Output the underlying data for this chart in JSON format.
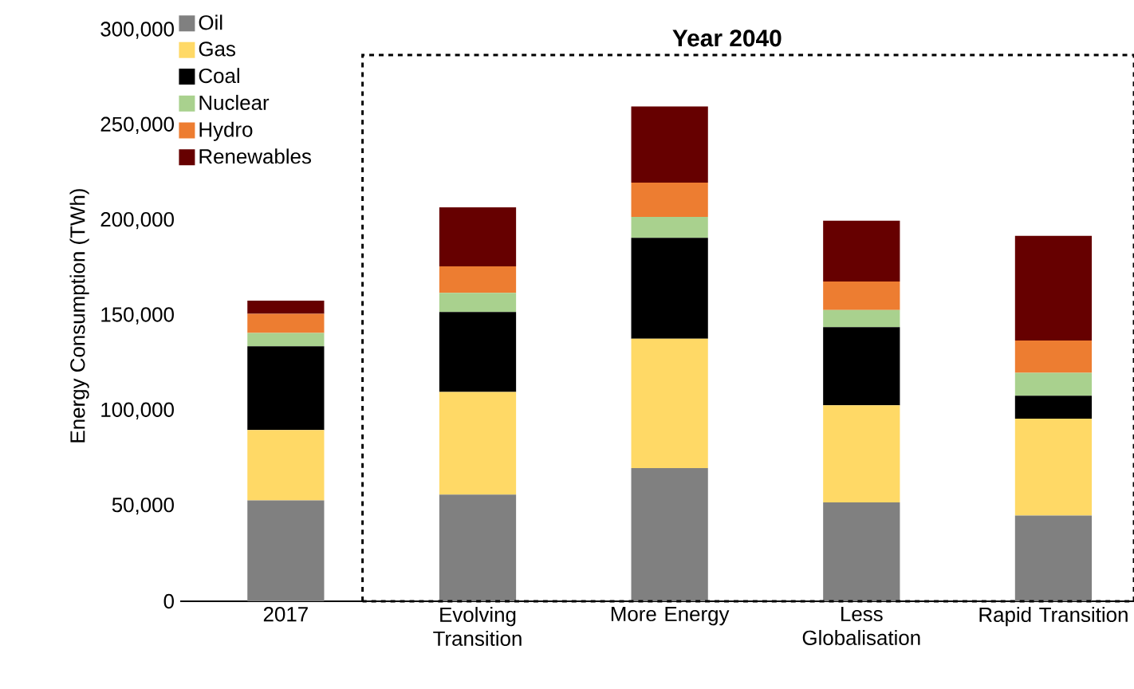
{
  "chart_data": {
    "type": "bar",
    "stacked": true,
    "ylabel": "Energy Consumption (TWh)",
    "annotations": [
      "Year 2040"
    ],
    "categories": [
      "2017",
      "Evolving Transition",
      "More Energy",
      "Less Globalisation",
      "Rapid Transition"
    ],
    "series": [
      {
        "name": "Oil",
        "color": "#808080",
        "values": [
          53000,
          56000,
          70000,
          52000,
          45000
        ]
      },
      {
        "name": "Gas",
        "color": "#ffd966",
        "values": [
          37000,
          54000,
          68000,
          51000,
          51000
        ]
      },
      {
        "name": "Coal",
        "color": "#000000",
        "values": [
          44000,
          42000,
          53000,
          41000,
          12000
        ]
      },
      {
        "name": "Nuclear",
        "color": "#a9d18e",
        "values": [
          7000,
          10000,
          11000,
          9000,
          12000
        ]
      },
      {
        "name": "Hydro",
        "color": "#ed7d31",
        "values": [
          10000,
          14000,
          18000,
          15000,
          17000
        ]
      },
      {
        "name": "Renewables",
        "color": "#660000",
        "values": [
          7000,
          31000,
          40000,
          32000,
          55000
        ]
      }
    ],
    "ylim": [
      0,
      300000
    ],
    "yticks": [
      {
        "value": 0,
        "label": "0"
      },
      {
        "value": 50000,
        "label": "50,000"
      },
      {
        "value": 100000,
        "label": "100,000"
      },
      {
        "value": 150000,
        "label": "150,000"
      },
      {
        "value": 200000,
        "label": "200,000"
      },
      {
        "value": 250000,
        "label": "250,000"
      },
      {
        "value": 300000,
        "label": "300,000"
      }
    ],
    "grid": false,
    "legend": "top left"
  }
}
